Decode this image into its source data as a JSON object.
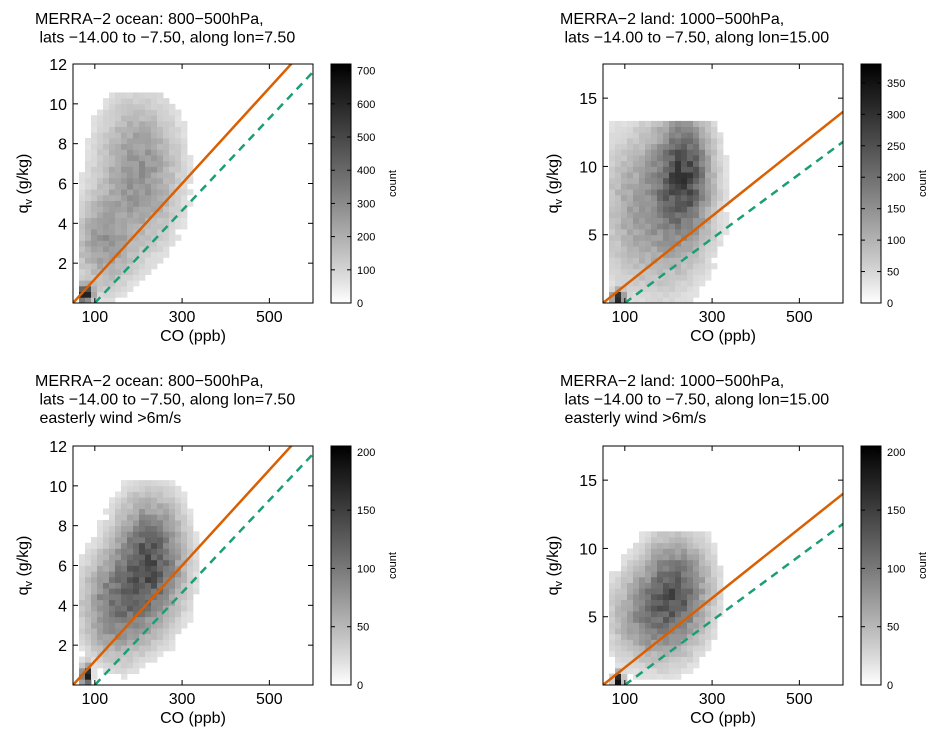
{
  "chart_data": [
    {
      "type": "heatmap",
      "title_lines": [
        "MERRA−2 ocean: 800−500hPa,",
        " lats −14.00 to −7.50, along lon=7.50"
      ],
      "xlabel": "CO (ppb)",
      "ylabel": "q",
      "ylabel_sub": "v",
      "ylabel_unit": " (g/kg)",
      "xlim": [
        50,
        600
      ],
      "ylim": [
        0,
        12
      ],
      "xticks": [
        100,
        300,
        500
      ],
      "yticks": [
        2,
        4,
        6,
        8,
        10,
        12
      ],
      "colorbar": {
        "label": "count",
        "min": 0,
        "max": 720,
        "ticks": [
          0,
          100,
          200,
          300,
          400,
          500,
          600,
          700
        ]
      },
      "lines": [
        {
          "style": "solid",
          "color": "#d95f02",
          "x": [
            50,
            600
          ],
          "y": [
            0,
            13.2
          ]
        },
        {
          "style": "dashed",
          "color": "#1b9e77",
          "x": [
            100,
            600
          ],
          "y": [
            0,
            11.6
          ]
        }
      ],
      "density_blobs": [
        {
          "cx": 78,
          "cy": 0.5,
          "sx": 10,
          "sy": 0.25,
          "amp": 720
        },
        {
          "cx": 200,
          "cy": 6.5,
          "sx": 55,
          "sy": 2.2,
          "amp": 170
        },
        {
          "cx": 120,
          "cy": 3.0,
          "sx": 40,
          "sy": 1.4,
          "amp": 140
        }
      ],
      "density_region": {
        "x0": 65,
        "x1": 380,
        "y0": 0.1,
        "y1": 10.5
      }
    },
    {
      "type": "heatmap",
      "title_lines": [
        "MERRA−2 land: 1000−500hPa,",
        " lats −14.00 to −7.50, along lon=15.00"
      ],
      "xlabel": "CO (ppb)",
      "ylabel": "q",
      "ylabel_sub": "v",
      "ylabel_unit": " (g/kg)",
      "xlim": [
        50,
        600
      ],
      "ylim": [
        0,
        17.5
      ],
      "xticks": [
        100,
        300,
        500
      ],
      "yticks": [
        5,
        10,
        15
      ],
      "colorbar": {
        "label": "count",
        "min": 0,
        "max": 380,
        "ticks": [
          0,
          50,
          100,
          150,
          200,
          250,
          300,
          350
        ]
      },
      "lines": [
        {
          "style": "solid",
          "color": "#d95f02",
          "x": [
            50,
            600
          ],
          "y": [
            0,
            14.0
          ]
        },
        {
          "style": "dashed",
          "color": "#1b9e77",
          "x": [
            100,
            600
          ],
          "y": [
            0,
            11.8
          ]
        }
      ],
      "density_blobs": [
        {
          "cx": 85,
          "cy": 0.4,
          "sx": 8,
          "sy": 0.3,
          "amp": 380
        },
        {
          "cx": 235,
          "cy": 9.5,
          "sx": 35,
          "sy": 2.6,
          "amp": 200
        },
        {
          "cx": 170,
          "cy": 7.0,
          "sx": 70,
          "sy": 3.5,
          "amp": 90
        }
      ],
      "density_region": {
        "x0": 60,
        "x1": 460,
        "y0": 0.1,
        "y1": 13.5
      }
    },
    {
      "type": "heatmap",
      "title_lines": [
        "MERRA−2 ocean: 800−500hPa,",
        " lats −14.00 to −7.50, along lon=7.50",
        " easterly wind >6m/s"
      ],
      "xlabel": "CO (ppb)",
      "ylabel": "q",
      "ylabel_sub": "v",
      "ylabel_unit": " (g/kg)",
      "xlim": [
        50,
        600
      ],
      "ylim": [
        0,
        12
      ],
      "xticks": [
        100,
        300,
        500
      ],
      "yticks": [
        2,
        4,
        6,
        8,
        10,
        12
      ],
      "colorbar": {
        "label": "count",
        "min": 0,
        "max": 205,
        "ticks": [
          0,
          50,
          100,
          150,
          200
        ]
      },
      "lines": [
        {
          "style": "solid",
          "color": "#d95f02",
          "x": [
            50,
            600
          ],
          "y": [
            0,
            13.2
          ]
        },
        {
          "style": "dashed",
          "color": "#1b9e77",
          "x": [
            100,
            600
          ],
          "y": [
            0,
            11.6
          ]
        }
      ],
      "density_blobs": [
        {
          "cx": 80,
          "cy": 0.5,
          "sx": 6,
          "sy": 0.3,
          "amp": 205
        },
        {
          "cx": 225,
          "cy": 6.2,
          "sx": 45,
          "sy": 1.8,
          "amp": 110
        },
        {
          "cx": 150,
          "cy": 4.0,
          "sx": 45,
          "sy": 1.5,
          "amp": 70
        }
      ],
      "density_region": {
        "x0": 65,
        "x1": 360,
        "y0": 0.1,
        "y1": 10.2
      }
    },
    {
      "type": "heatmap",
      "title_lines": [
        "MERRA−2 land: 1000−500hPa,",
        " lats −14.00 to −7.50, along lon=15.00",
        " easterly wind >6m/s"
      ],
      "xlabel": "CO (ppb)",
      "ylabel": "q",
      "ylabel_sub": "v",
      "ylabel_unit": " (g/kg)",
      "xlim": [
        50,
        600
      ],
      "ylim": [
        0,
        17.5
      ],
      "xticks": [
        100,
        300,
        500
      ],
      "yticks": [
        5,
        10,
        15
      ],
      "colorbar": {
        "label": "count",
        "min": 0,
        "max": 205,
        "ticks": [
          0,
          50,
          100,
          150,
          200
        ]
      },
      "lines": [
        {
          "style": "solid",
          "color": "#d95f02",
          "x": [
            50,
            600
          ],
          "y": [
            0,
            14.0
          ]
        },
        {
          "style": "dashed",
          "color": "#1b9e77",
          "x": [
            100,
            600
          ],
          "y": [
            0,
            11.8
          ]
        }
      ],
      "density_blobs": [
        {
          "cx": 85,
          "cy": 0.4,
          "sx": 6,
          "sy": 0.3,
          "amp": 205
        },
        {
          "cx": 215,
          "cy": 7.0,
          "sx": 45,
          "sy": 2.2,
          "amp": 90
        },
        {
          "cx": 160,
          "cy": 5.0,
          "sx": 55,
          "sy": 2.0,
          "amp": 50
        }
      ],
      "density_region": {
        "x0": 60,
        "x1": 440,
        "y0": 0.1,
        "y1": 11.2
      }
    }
  ]
}
